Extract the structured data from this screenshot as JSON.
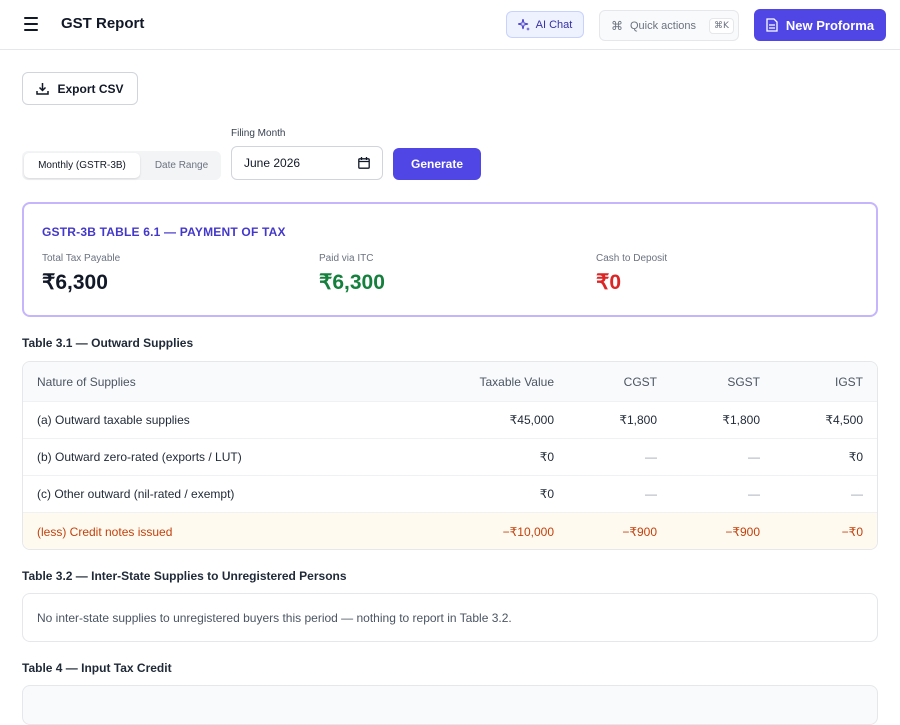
{
  "header": {
    "title": "GST Report",
    "ai_chat": "AI Chat",
    "quick_actions": "Quick actions",
    "shortcut": "⌘K",
    "new_proforma": "New Proforma"
  },
  "toolbar": {
    "export_csv": "Export CSV"
  },
  "filters": {
    "mode_options": [
      "Monthly (GSTR-3B)",
      "Date Range"
    ],
    "selected_mode": "Monthly (GSTR-3B)",
    "filing_month_label": "Filing Month",
    "filing_month_value": "June  2026",
    "generate": "Generate"
  },
  "summary": {
    "title": "GSTR-3B TABLE 6.1 — PAYMENT OF TAX",
    "stats": [
      {
        "label": "Total Tax Payable",
        "value": "₹6,300",
        "color": "#111827"
      },
      {
        "label": "Paid via ITC",
        "value": "₹6,300",
        "color": "#15803d"
      },
      {
        "label": "Cash to Deposit",
        "value": "₹0",
        "color": "#dc2626"
      }
    ]
  },
  "table31": {
    "title": "Table 3.1 — Outward Supplies",
    "columns": [
      "Nature of Supplies",
      "Taxable Value",
      "CGST",
      "SGST",
      "IGST"
    ],
    "rows": [
      [
        "(a) Outward taxable supplies",
        "₹45,000",
        "₹1,800",
        "₹1,800",
        "₹4,500"
      ],
      [
        "(b) Outward zero-rated (exports / LUT)",
        "₹0",
        "—",
        "—",
        "₹0"
      ],
      [
        "(c) Other outward (nil-rated / exempt)",
        "₹0",
        "—",
        "—",
        "—"
      ],
      [
        "(less) Credit notes issued",
        "−₹10,000",
        "−₹900",
        "−₹900",
        "−₹0"
      ]
    ]
  },
  "table32": {
    "title": "Table 3.2 — Inter-State Supplies to Unregistered Persons",
    "empty_message": "No inter-state supplies to unregistered buyers this period — nothing to report in Table 3.2."
  },
  "table4": {
    "title": "Table 4 — Input Tax Credit"
  }
}
